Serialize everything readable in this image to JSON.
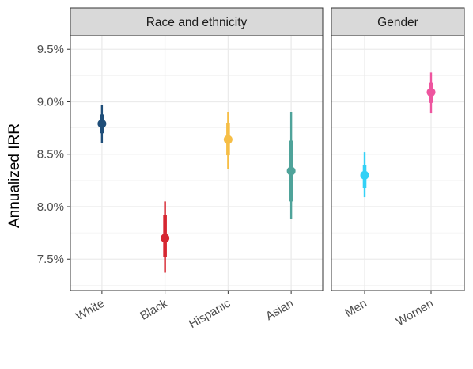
{
  "chart_data": {
    "type": "scatter",
    "subtype": "point-interval (faceted)",
    "ylabel": "Annualized IRR",
    "xlabel": "",
    "ylim": [
      7.2,
      9.63
    ],
    "yticks": [
      "7.5%",
      "8.0%",
      "8.5%",
      "9.0%",
      "9.5%"
    ],
    "ytick_values": [
      7.5,
      8.0,
      8.5,
      9.0,
      9.5
    ],
    "grid": true,
    "legend": "none",
    "panels": [
      {
        "title": "Race and ethnicity",
        "categories": [
          "White",
          "Black",
          "Hispanic",
          "Asian"
        ],
        "points": [
          {
            "label": "White",
            "color": "#1f4e79",
            "value": 8.79,
            "inner": [
              8.7,
              8.88
            ],
            "outer": [
              8.61,
              8.97
            ]
          },
          {
            "label": "Black",
            "color": "#d62631",
            "value": 7.7,
            "inner": [
              7.52,
              7.92
            ],
            "outer": [
              7.37,
              8.05
            ]
          },
          {
            "label": "Hispanic",
            "color": "#f6be46",
            "value": 8.64,
            "inner": [
              8.49,
              8.8
            ],
            "outer": [
              8.36,
              8.9
            ]
          },
          {
            "label": "Asian",
            "color": "#4fa39a",
            "value": 8.34,
            "inner": [
              8.05,
              8.63
            ],
            "outer": [
              7.88,
              8.9
            ]
          }
        ]
      },
      {
        "title": "Gender",
        "categories": [
          "Men",
          "Women"
        ],
        "points": [
          {
            "label": "Men",
            "color": "#33d1f6",
            "value": 8.3,
            "inner": [
              8.18,
              8.4
            ],
            "outer": [
              8.09,
              8.52
            ]
          },
          {
            "label": "Women",
            "color": "#ee559f",
            "value": 9.09,
            "inner": [
              8.99,
              9.18
            ],
            "outer": [
              8.89,
              9.28
            ]
          }
        ]
      }
    ]
  }
}
